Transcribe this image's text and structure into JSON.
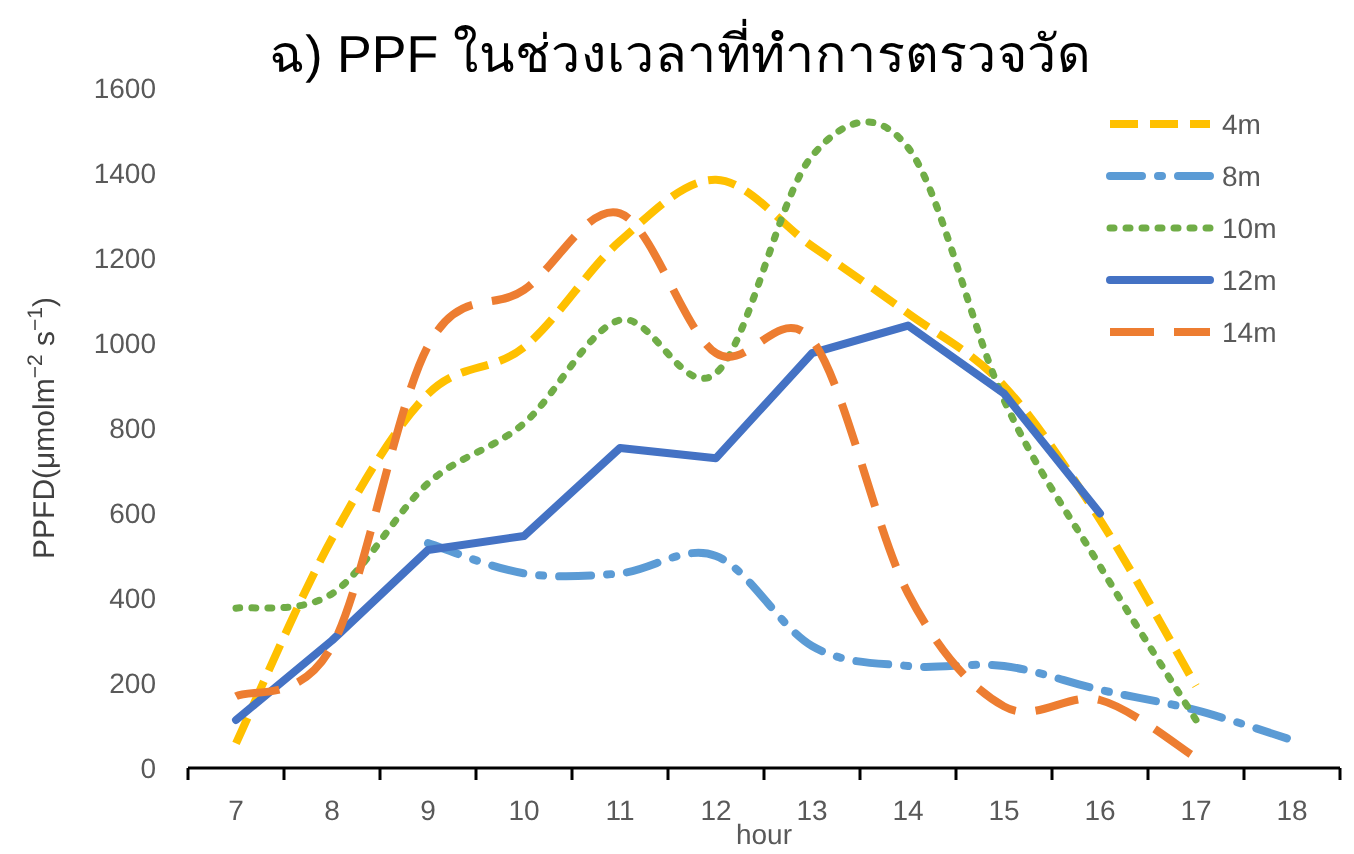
{
  "chart_data": {
    "type": "line",
    "title": "ฉ) PPF ในช่วงเวลาที่ทำการตรวจวัด",
    "xlabel": "hour",
    "ylabel": "PPFD(μmolm$^{−2}$ s$^{−1}$)",
    "categories": [
      "7",
      "8",
      "9",
      "10",
      "11",
      "12",
      "13",
      "14",
      "15",
      "16",
      "17",
      "18"
    ],
    "ylim": [
      0,
      1600
    ],
    "yticks": [
      0,
      200,
      400,
      600,
      800,
      1000,
      1200,
      1400,
      1600
    ],
    "grid": false,
    "legend": "top right",
    "marker": "none",
    "series": [
      {
        "name": "4m",
        "color": "#ffc000",
        "line_style": "dashed",
        "values": [
          58,
          540,
          880,
          990,
          1240,
          1384,
          1228,
          1070,
          899,
          584,
          193,
          null
        ]
      },
      {
        "name": "8m",
        "color": "#5b9bd5",
        "line_style": "dashdot",
        "values": [
          null,
          null,
          529,
          458,
          458,
          499,
          287,
          240,
          240,
          184,
          136,
          66
        ]
      },
      {
        "name": "10m",
        "color": "#70ad47",
        "line_style": "dotted",
        "values": [
          376,
          410,
          670,
          811,
          1054,
          929,
          1440,
          1460,
          866,
          475,
          113,
          null
        ]
      },
      {
        "name": "12m",
        "color": "#4472c4",
        "line_style": "solid",
        "values": [
          113,
          300,
          513,
          546,
          753,
          729,
          976,
          1041,
          881,
          599,
          null,
          null
        ]
      },
      {
        "name": "14m",
        "color": "#ed7d31",
        "line_style": "longdash",
        "values": [
          169,
          287,
          993,
          1125,
          1305,
          976,
          1007,
          411,
          145,
          160,
          24,
          null
        ]
      }
    ]
  }
}
